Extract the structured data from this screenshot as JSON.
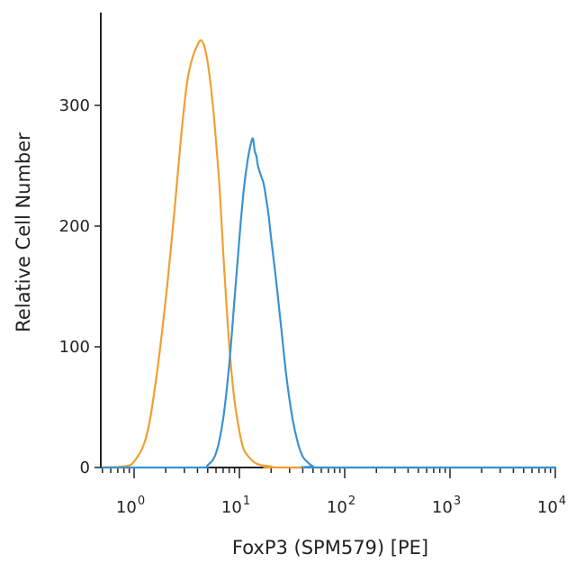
{
  "chart_data": {
    "type": "line",
    "title": "",
    "xlabel": "FoxP3 (SPM579) [PE]",
    "ylabel": "Relative Cell Number",
    "x_scale": "log",
    "xlim": [
      0.5,
      10000
    ],
    "ylim": [
      0,
      380
    ],
    "x_ticks": [
      {
        "base": "10",
        "exp": "0",
        "value": 1
      },
      {
        "base": "10",
        "exp": "1",
        "value": 10
      },
      {
        "base": "10",
        "exp": "2",
        "value": 100
      },
      {
        "base": "10",
        "exp": "3",
        "value": 1000
      },
      {
        "base": "10",
        "exp": "4",
        "value": 10000
      }
    ],
    "y_ticks": [
      "0",
      "100",
      "200",
      "300"
    ],
    "grid": false,
    "series": [
      {
        "color": "#f0a030",
        "x": [
          0.5,
          0.8,
          1.0,
          1.3,
          1.6,
          2.0,
          2.4,
          2.8,
          3.2,
          3.6,
          4.0,
          4.3,
          4.6,
          4.9,
          5.2,
          5.6,
          6.0,
          6.5,
          7.0,
          7.6,
          8.2,
          9.0,
          10,
          11,
          12.5,
          14,
          16,
          20,
          30,
          10000
        ],
        "y": [
          0,
          1,
          5,
          25,
          70,
          140,
          210,
          275,
          320,
          340,
          350,
          354,
          350,
          340,
          325,
          300,
          270,
          230,
          180,
          130,
          90,
          55,
          30,
          15,
          8,
          4,
          2,
          1,
          0,
          0
        ]
      },
      {
        "color": "#3a92d2",
        "x": [
          0.5,
          4,
          5,
          6,
          7,
          8,
          9,
          10,
          11,
          12,
          13,
          13.5,
          14,
          14.5,
          15,
          16,
          17,
          18,
          19,
          20,
          22,
          25,
          28,
          32,
          36,
          40,
          45,
          50,
          60,
          10000
        ],
        "y": [
          0,
          0,
          2,
          12,
          40,
          85,
          140,
          190,
          230,
          255,
          270,
          272,
          262,
          258,
          250,
          242,
          235,
          222,
          208,
          190,
          160,
          115,
          75,
          40,
          20,
          9,
          4,
          1,
          0,
          0
        ]
      }
    ]
  }
}
